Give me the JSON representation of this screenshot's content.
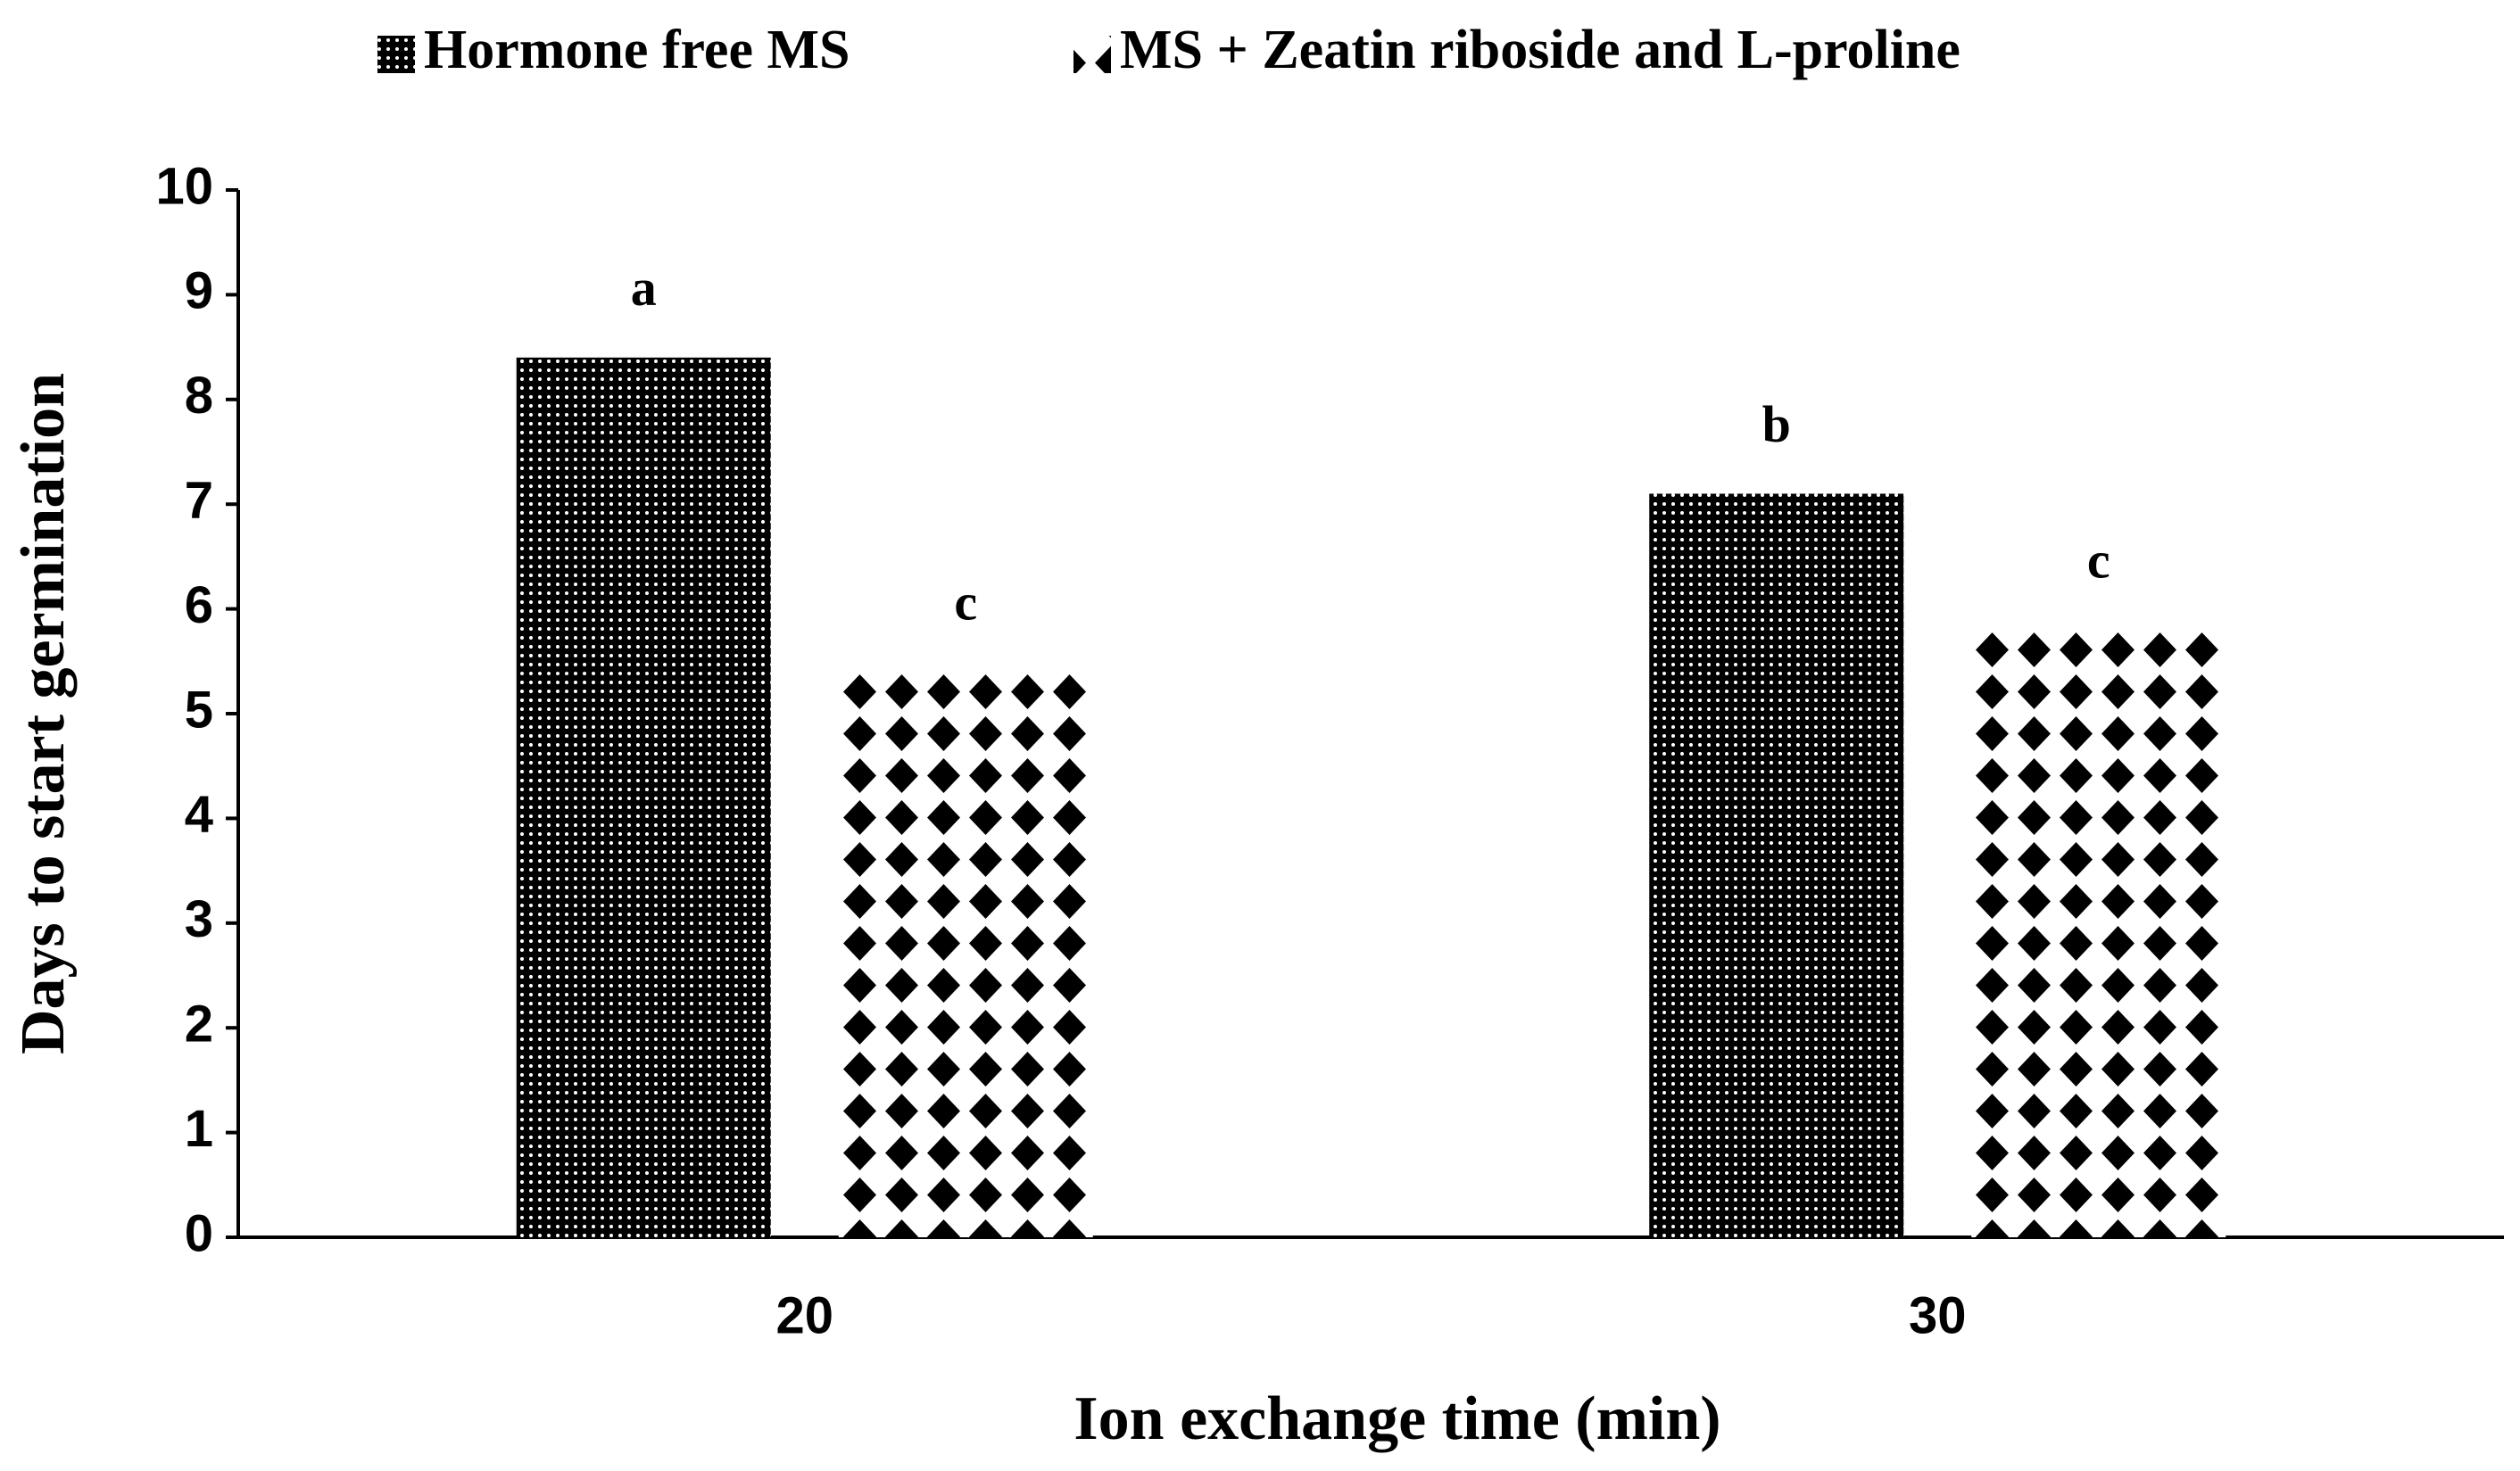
{
  "chart_data": {
    "type": "bar",
    "x_label": "Ion exchange time (min)",
    "y_label": "Days to start germination",
    "categories": [
      "20",
      "30"
    ],
    "series": [
      {
        "name": "Hormone free MS",
        "color": "#000000",
        "pattern": "dots",
        "values": [
          8.4,
          7.1
        ],
        "letters": [
          "a",
          "b"
        ]
      },
      {
        "name": "MS + Zeatin riboside and L-proline",
        "color": "#000000",
        "pattern": "diamonds",
        "values": [
          5.4,
          5.8
        ],
        "letters": [
          "c",
          "c"
        ]
      }
    ],
    "ylim": [
      0,
      10
    ],
    "yticks": [
      0,
      1,
      2,
      3,
      4,
      5,
      6,
      7,
      8,
      9,
      10
    ],
    "grid": false,
    "legend": "top"
  }
}
